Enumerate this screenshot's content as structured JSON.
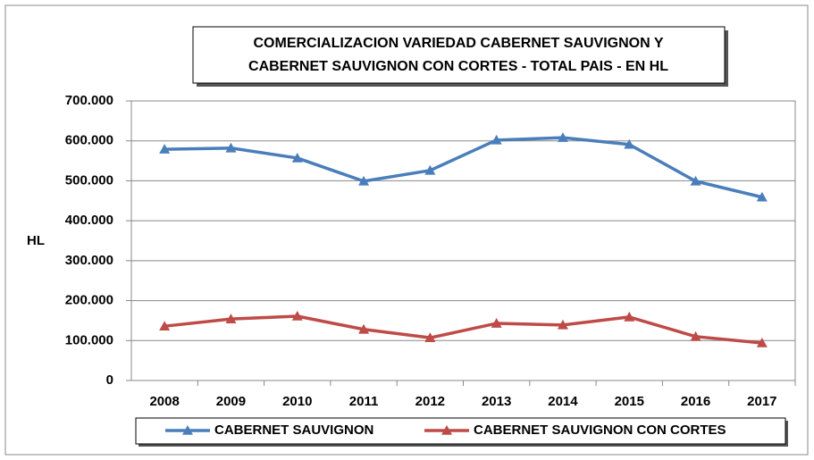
{
  "chart_data": {
    "type": "line",
    "title": [
      "COMERCIALIZACION VARIEDAD CABERNET SAUVIGNON  Y",
      "CABERNET SAUVIGNON CON CORTES - TOTAL PAIS - EN HL"
    ],
    "y_label": "HL",
    "categories": [
      "2008",
      "2009",
      "2010",
      "2011",
      "2012",
      "2013",
      "2014",
      "2015",
      "2016",
      "2017"
    ],
    "series": [
      {
        "name": "CABERNET SAUVIGNON",
        "color": "#4a7ebb",
        "values": [
          579000,
          582000,
          557000,
          499000,
          526000,
          602000,
          608000,
          591000,
          499000,
          459000
        ]
      },
      {
        "name": "CABERNET SAUVIGNON CON CORTES",
        "color": "#be4b48",
        "values": [
          136000,
          154000,
          161000,
          128000,
          107000,
          143000,
          139000,
          159000,
          110000,
          94000
        ]
      }
    ],
    "ylim": [
      0,
      700000
    ],
    "yticks": [
      0,
      {
        "value": 100000,
        "label": "100.000"
      },
      {
        "value": 200000,
        "label": "200.000"
      },
      {
        "value": 300000,
        "label": "300.000"
      },
      {
        "value": 400000,
        "label": "400.000"
      },
      {
        "value": 500000,
        "label": "500.000"
      },
      {
        "value": 600000,
        "label": "600.000"
      },
      {
        "value": 700000,
        "label": "700.000"
      }
    ],
    "grid": true,
    "legend": "bottom"
  }
}
